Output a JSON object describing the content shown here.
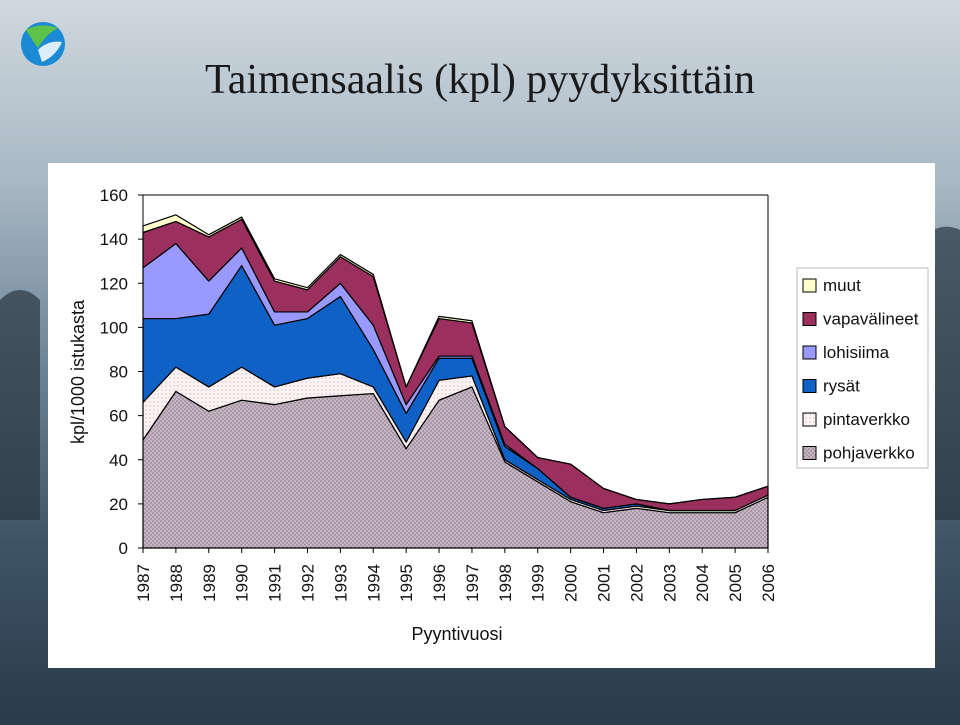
{
  "slide": {
    "title": "Taimensaalis (kpl) pyydyksittäin"
  },
  "chart_data": {
    "type": "area",
    "stacked": true,
    "title": "Taimensaalis (kpl) pyydyksittäin",
    "xlabel": "Pyyntivuosi",
    "ylabel": "kpl/1000 istukasta",
    "ylim": [
      0,
      160
    ],
    "yticks": [
      0,
      20,
      40,
      60,
      80,
      100,
      120,
      140,
      160
    ],
    "categories": [
      "1987",
      "1988",
      "1989",
      "1990",
      "1991",
      "1992",
      "1993",
      "1994",
      "1995",
      "1996",
      "1997",
      "1998",
      "1999",
      "2000",
      "2001",
      "2002",
      "2003",
      "2004",
      "2005",
      "2006"
    ],
    "series": [
      {
        "name": "pohjaverkko",
        "color": "#b7a4b4",
        "values": [
          49,
          71,
          62,
          67,
          65,
          68,
          69,
          70,
          45,
          67,
          73,
          39,
          30,
          21,
          16,
          18,
          16,
          16,
          16,
          23
        ]
      },
      {
        "name": "pintaverkko",
        "color": "#fbf1f1",
        "values": [
          17,
          11,
          11,
          15,
          8,
          9,
          10,
          3,
          3,
          9,
          5,
          1,
          1,
          1,
          1,
          1,
          1,
          1,
          1,
          1
        ]
      },
      {
        "name": "rysät",
        "color": "#0f61c6",
        "values": [
          38,
          22,
          33,
          46,
          28,
          27,
          35,
          17,
          13,
          10,
          8,
          6,
          5,
          1,
          1,
          1,
          0,
          0,
          0,
          0
        ]
      },
      {
        "name": "lohisiima",
        "color": "#9999ff",
        "values": [
          23,
          34,
          15,
          8,
          6,
          3,
          6,
          11,
          4,
          1,
          1,
          1,
          0,
          0,
          0,
          0,
          0,
          0,
          0,
          0
        ]
      },
      {
        "name": "vapavälineet",
        "color": "#9b2f5e",
        "values": [
          16,
          10,
          20,
          13,
          14,
          10,
          12,
          22,
          8,
          17,
          15,
          8,
          5,
          15,
          9,
          2,
          3,
          5,
          6,
          4
        ]
      },
      {
        "name": "muut",
        "color": "#ffffcc",
        "values": [
          3,
          3,
          1,
          1,
          1,
          1,
          1,
          1,
          0,
          1,
          1,
          0,
          0,
          0,
          0,
          0,
          0,
          0,
          0,
          0
        ]
      }
    ],
    "legend_order": [
      "muut",
      "vapavälineet",
      "lohisiima",
      "rysät",
      "pintaverkko",
      "pohjaverkko"
    ],
    "legend_position": "right"
  }
}
